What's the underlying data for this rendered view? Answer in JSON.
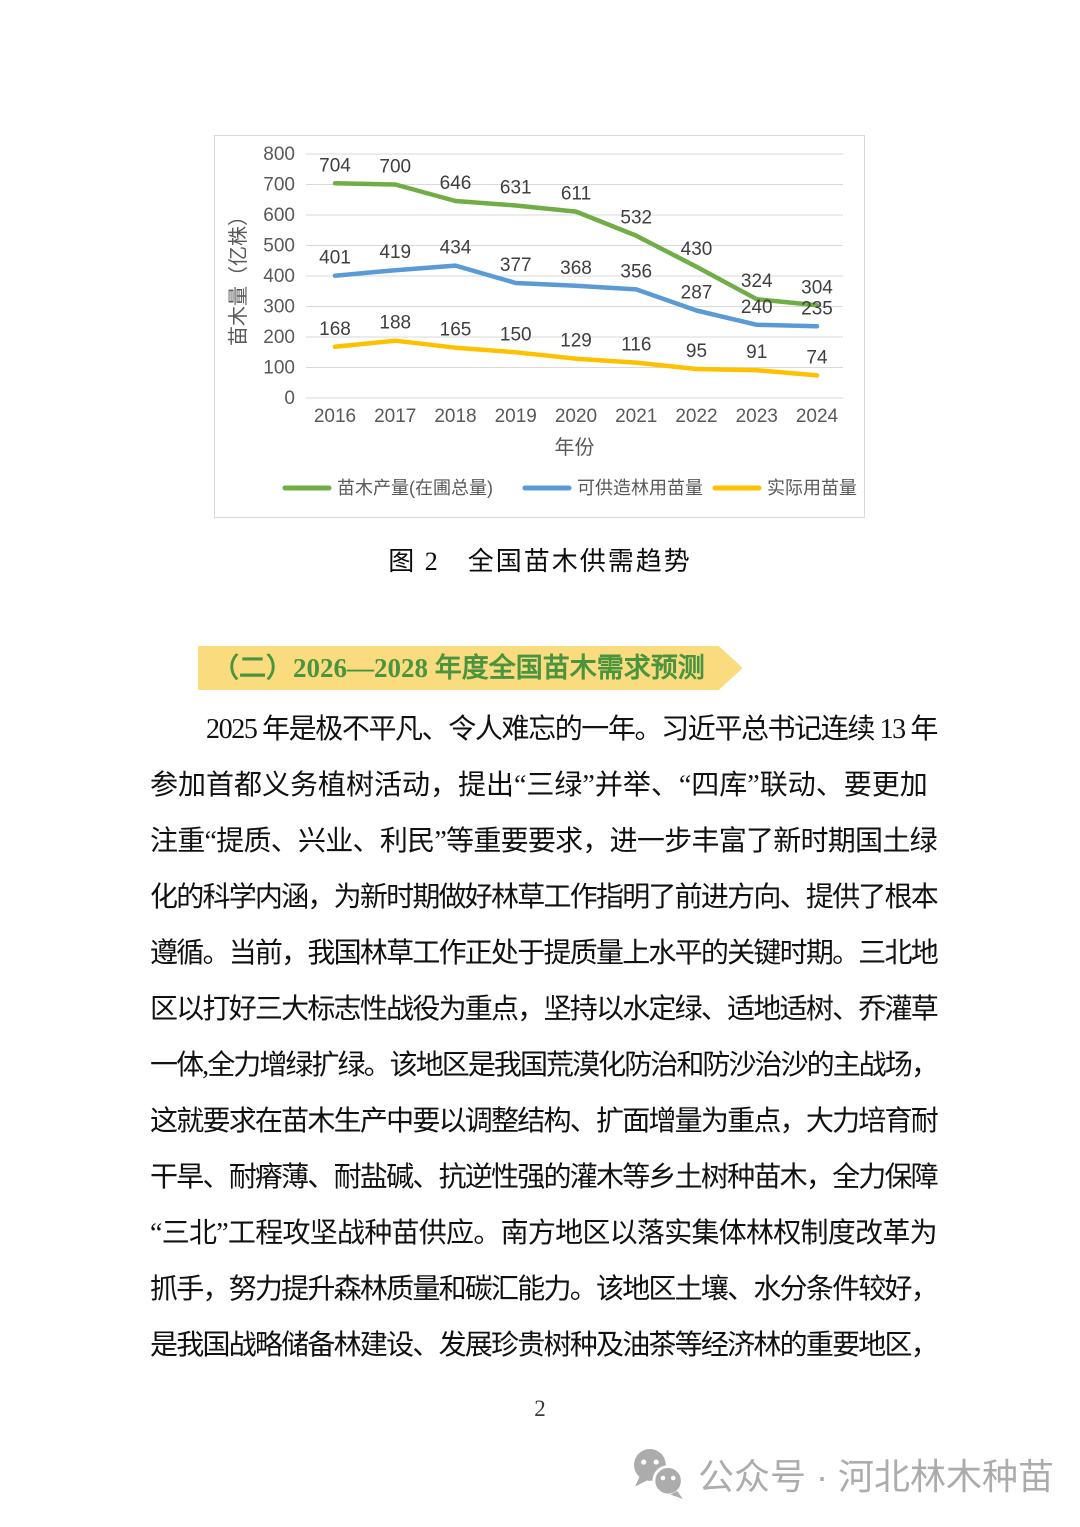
{
  "figure": {
    "caption": "图 2　全国苗木供需趋势"
  },
  "section_heading": {
    "label": "（二）2026—2028 年度全国苗木需求预测",
    "text_color": "#4A9440",
    "highlight_color": "#FADB7E"
  },
  "body": {
    "lines": [
      "2025 年是极不平凡、令人难忘的一年。习近平总书记连续 13 年",
      "参加首都义务植树活动，提出“三绿”并举、“四库”联动、要更加",
      "注重“提质、兴业、利民”等重要要求，进一步丰富了新时期国土绿",
      "化的科学内涵，为新时期做好林草工作指明了前进方向、提供了根本",
      "遵循。当前，我国林草工作正处于提质量上水平的关键时期。三北地",
      "区以打好三大标志性战役为重点，坚持以水定绿、适地适树、乔灌草",
      "一体,全力增绿扩绿。该地区是我国荒漠化防治和防沙治沙的主战场，",
      "这就要求在苗木生产中要以调整结构、扩面增量为重点，大力培育耐",
      "干旱、耐瘠薄、耐盐碱、抗逆性强的灌木等乡土树种苗木，全力保障",
      "“三北”工程攻坚战种苗供应。南方地区以落实集体林权制度改革为",
      "抓手，努力提升森林质量和碳汇能力。该地区土壤、水分条件较好，",
      "是我国战略储备林建设、发展珍贵树种及油茶等经济林的重要地区，"
    ]
  },
  "footer": {
    "page_number": "2"
  },
  "watermark": {
    "icon": "wechat-icon",
    "label": "公众号 · 河北林木种苗",
    "color": "#ACACAC"
  },
  "chart_data": {
    "type": "line",
    "categories": [
      "2016",
      "2017",
      "2018",
      "2019",
      "2020",
      "2021",
      "2022",
      "2023",
      "2024"
    ],
    "series": [
      {
        "name": "苗木产量(在圃总量)",
        "color": "#70AD47",
        "values": [
          704,
          700,
          646,
          631,
          611,
          532,
          430,
          324,
          304
        ]
      },
      {
        "name": "可供造林用苗量",
        "color": "#5B9BD5",
        "values": [
          401,
          419,
          434,
          377,
          368,
          356,
          287,
          240,
          235
        ]
      },
      {
        "name": "实际用苗量",
        "color": "#FFC000",
        "values": [
          168,
          188,
          165,
          150,
          129,
          116,
          95,
          91,
          74
        ]
      }
    ],
    "xlabel": "年份",
    "ylabel": "苗木量（亿株）",
    "ylim": [
      0,
      800
    ],
    "ytick_step": 100,
    "grid": true,
    "legend_position": "bottom",
    "grid_color": "#D9D9D9",
    "axis_text_color": "#595959",
    "data_label_color": "#3F3F3F"
  }
}
